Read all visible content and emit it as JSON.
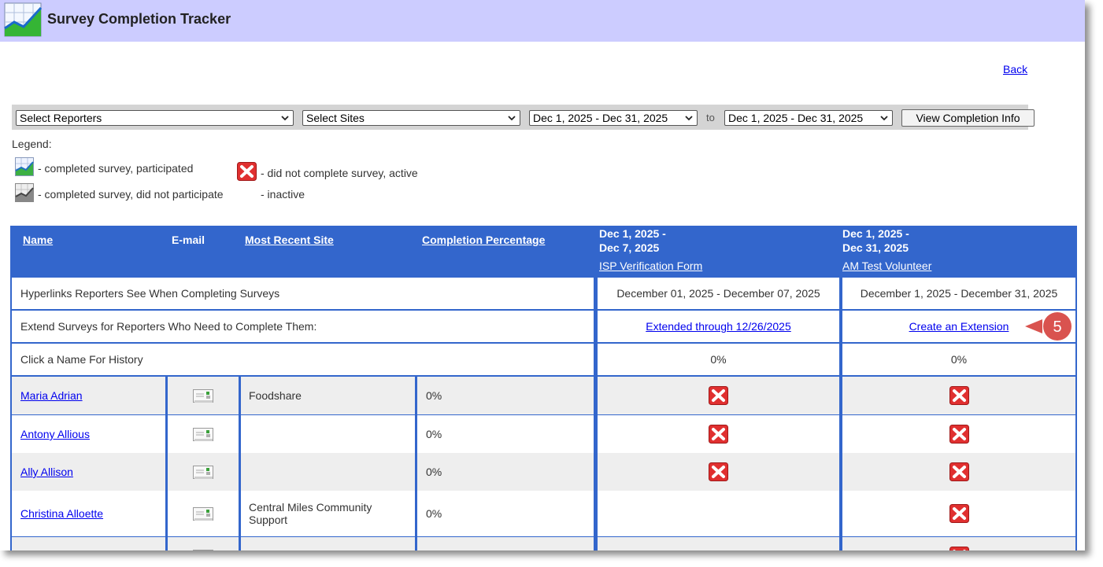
{
  "app": {
    "title": "Survey Completion Tracker"
  },
  "nav": {
    "back_label": "Back"
  },
  "filters": {
    "reporters_selected": "Select Reporters",
    "sites_selected": "Select Sites",
    "from_selected": "Dec 1, 2025 - Dec 31, 2025",
    "to_label": "to",
    "to_selected": "Dec 1, 2025 - Dec 31, 2025",
    "view_button": "View Completion Info"
  },
  "legend": {
    "title": "Legend:",
    "items": [
      {
        "icon": "chart-green-icon",
        "text": "- completed survey, participated"
      },
      {
        "icon": "error-x-icon",
        "text": "- did not complete survey, active"
      },
      {
        "icon": "chart-gray-icon",
        "text": "- completed survey, did not participate"
      },
      {
        "icon": "",
        "text": "- inactive"
      }
    ]
  },
  "table": {
    "headers": {
      "name": "Name",
      "email": "E-mail",
      "site": "Most Recent Site",
      "completion": "Completion Percentage"
    },
    "periods": [
      {
        "line1": "Dec 1, 2025 -",
        "line2": "Dec 7, 2025",
        "form": "ISP Verification Form",
        "hyperlink_range": "December 01, 2025 - December 07, 2025",
        "extension": "Extended through 12/26/2025",
        "percent": "0%"
      },
      {
        "line1": "Dec 1, 2025 -",
        "line2": "Dec 31, 2025",
        "form": "AM Test Volunteer",
        "hyperlink_range": "December 1, 2025 - December 31, 2025",
        "extension": "Create an Extension",
        "percent": "0%"
      }
    ],
    "row_labels": {
      "hyperlinks": "Hyperlinks Reporters See When Completing Surveys",
      "extend": "Extend Surveys for Reporters Who Need to Complete Them:",
      "history": "Click a Name For History"
    },
    "reporters": [
      {
        "name": "Maria Adrian",
        "site": "Foodshare",
        "completion": "0%",
        "p1": "error-x-icon",
        "p2": "error-x-icon"
      },
      {
        "name": "Antony Allious",
        "site": "",
        "completion": "0%",
        "p1": "error-x-icon",
        "p2": "error-x-icon"
      },
      {
        "name": "Ally Allison",
        "site": "",
        "completion": "0%",
        "p1": "error-x-icon",
        "p2": "error-x-icon"
      },
      {
        "name": "Christina Alloette",
        "site": "Central Miles Community Support",
        "completion": "0%",
        "p1": "",
        "p2": "error-x-icon"
      }
    ]
  },
  "callout": {
    "number": "5",
    "color": "#d9534f"
  },
  "colors": {
    "header_bg": "#ccccff",
    "table_blue": "#3366cc",
    "row_alt": "#eeeeee",
    "filter_bg": "#d4d4d4"
  }
}
